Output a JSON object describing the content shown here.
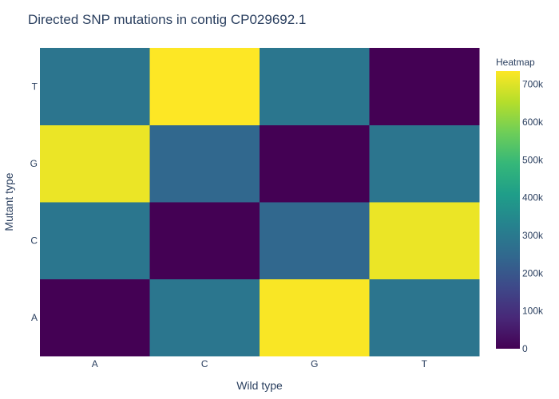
{
  "chart_data": {
    "type": "heatmap",
    "title": "Directed SNP mutations in contig CP029692.1",
    "xlabel": "Wild type",
    "ylabel": "Mutant type",
    "x_categories": [
      "A",
      "C",
      "G",
      "T"
    ],
    "y_categories": [
      "A",
      "C",
      "G",
      "T"
    ],
    "z": [
      [
        0,
        290000,
        730000,
        285000
      ],
      [
        290000,
        0,
        245000,
        715000
      ],
      [
        715000,
        245000,
        0,
        285000
      ],
      [
        285000,
        735000,
        290000,
        0
      ]
    ],
    "colorbar": {
      "title": "Heatmap",
      "range": [
        0,
        735000
      ],
      "tick_values": [
        0,
        100000,
        200000,
        300000,
        400000,
        500000,
        600000,
        700000
      ],
      "tick_labels": [
        "0",
        "100k",
        "200k",
        "300k",
        "400k",
        "500k",
        "600k",
        "700k"
      ]
    },
    "colorscale": "Viridis"
  }
}
